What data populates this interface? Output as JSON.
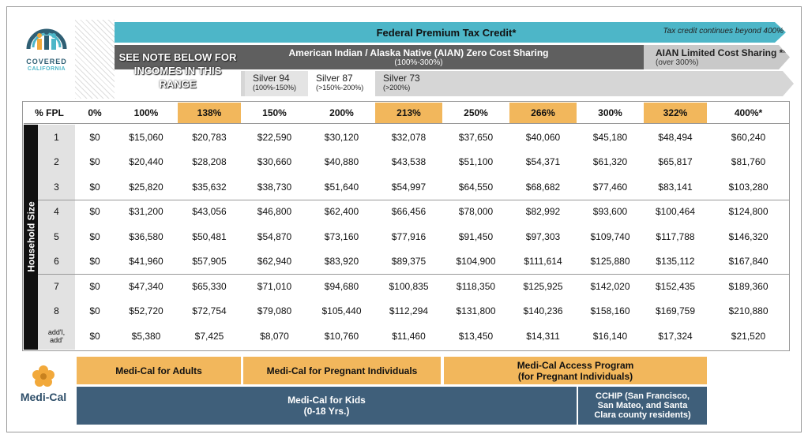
{
  "logo": {
    "line1": "COVERED",
    "line2": "CALIFORNIA"
  },
  "header": {
    "tax_credit": "Federal Premium Tax Credit*",
    "tax_credit_note": "Tax credit continues beyond 400%",
    "note": "SEE NOTE BELOW FOR INCOMES IN THIS RANGE",
    "aian": "American Indian / Alaska Native (AIAN) Zero Cost Sharing",
    "aian_range": "(100%-300%)",
    "aian_limited": "AIAN Limited Cost Sharing **",
    "aian_limited_range": "(over 300%)",
    "silver": [
      {
        "label": "Silver 94",
        "range": "(100%-150%)"
      },
      {
        "label": "Silver 87",
        "range": "(>150%-200%)"
      },
      {
        "label": "Silver 73",
        "range": "(>200%)"
      }
    ]
  },
  "table": {
    "side_label": "Household Size",
    "columns": [
      {
        "label": "% FPL",
        "highlight": false
      },
      {
        "label": "0%",
        "highlight": false
      },
      {
        "label": "100%",
        "highlight": false
      },
      {
        "label": "138%",
        "highlight": true
      },
      {
        "label": "150%",
        "highlight": false
      },
      {
        "label": "200%",
        "highlight": false
      },
      {
        "label": "213%",
        "highlight": true
      },
      {
        "label": "250%",
        "highlight": false
      },
      {
        "label": "266%",
        "highlight": true
      },
      {
        "label": "300%",
        "highlight": false
      },
      {
        "label": "322%",
        "highlight": true
      },
      {
        "label": "400%*",
        "highlight": false
      }
    ],
    "rows": [
      {
        "size": "1",
        "values": [
          "$0",
          "$15,060",
          "$20,783",
          "$22,590",
          "$30,120",
          "$32,078",
          "$37,650",
          "$40,060",
          "$45,180",
          "$48,494",
          "$60,240"
        ]
      },
      {
        "size": "2",
        "values": [
          "$0",
          "$20,440",
          "$28,208",
          "$30,660",
          "$40,880",
          "$43,538",
          "$51,100",
          "$54,371",
          "$61,320",
          "$65,817",
          "$81,760"
        ]
      },
      {
        "size": "3",
        "values": [
          "$0",
          "$25,820",
          "$35,632",
          "$38,730",
          "$51,640",
          "$54,997",
          "$64,550",
          "$68,682",
          "$77,460",
          "$83,141",
          "$103,280"
        ]
      },
      {
        "size": "4",
        "values": [
          "$0",
          "$31,200",
          "$43,056",
          "$46,800",
          "$62,400",
          "$66,456",
          "$78,000",
          "$82,992",
          "$93,600",
          "$100,464",
          "$124,800"
        ]
      },
      {
        "size": "5",
        "values": [
          "$0",
          "$36,580",
          "$50,481",
          "$54,870",
          "$73,160",
          "$77,916",
          "$91,450",
          "$97,303",
          "$109,740",
          "$117,788",
          "$146,320"
        ]
      },
      {
        "size": "6",
        "values": [
          "$0",
          "$41,960",
          "$57,905",
          "$62,940",
          "$83,920",
          "$89,375",
          "$104,900",
          "$111,614",
          "$125,880",
          "$135,112",
          "$167,840"
        ]
      },
      {
        "size": "7",
        "values": [
          "$0",
          "$47,340",
          "$65,330",
          "$71,010",
          "$94,680",
          "$100,835",
          "$118,350",
          "$125,925",
          "$142,020",
          "$152,435",
          "$189,360"
        ]
      },
      {
        "size": "8",
        "values": [
          "$0",
          "$52,720",
          "$72,754",
          "$79,080",
          "$105,440",
          "$112,294",
          "$131,800",
          "$140,236",
          "$158,160",
          "$169,759",
          "$210,880"
        ]
      },
      {
        "size": "add'l, add'",
        "values": [
          "$0",
          "$5,380",
          "$7,425",
          "$8,070",
          "$10,760",
          "$11,460",
          "$13,450",
          "$14,311",
          "$16,140",
          "$17,324",
          "$21,520"
        ]
      }
    ]
  },
  "medi_cal": {
    "logo_text": "Medi-Cal",
    "adults": "Medi-Cal for Adults",
    "pregnant": "Medi-Cal for Pregnant Individuals",
    "access": "Medi-Cal Access Program",
    "access_sub": "(for Pregnant Individuals)",
    "kids": "Medi-Cal for Kids",
    "kids_sub": "(0-18 Yrs.)",
    "cchip": "CCHIP (San Francisco, San Mateo, and Santa Clara county residents)"
  }
}
